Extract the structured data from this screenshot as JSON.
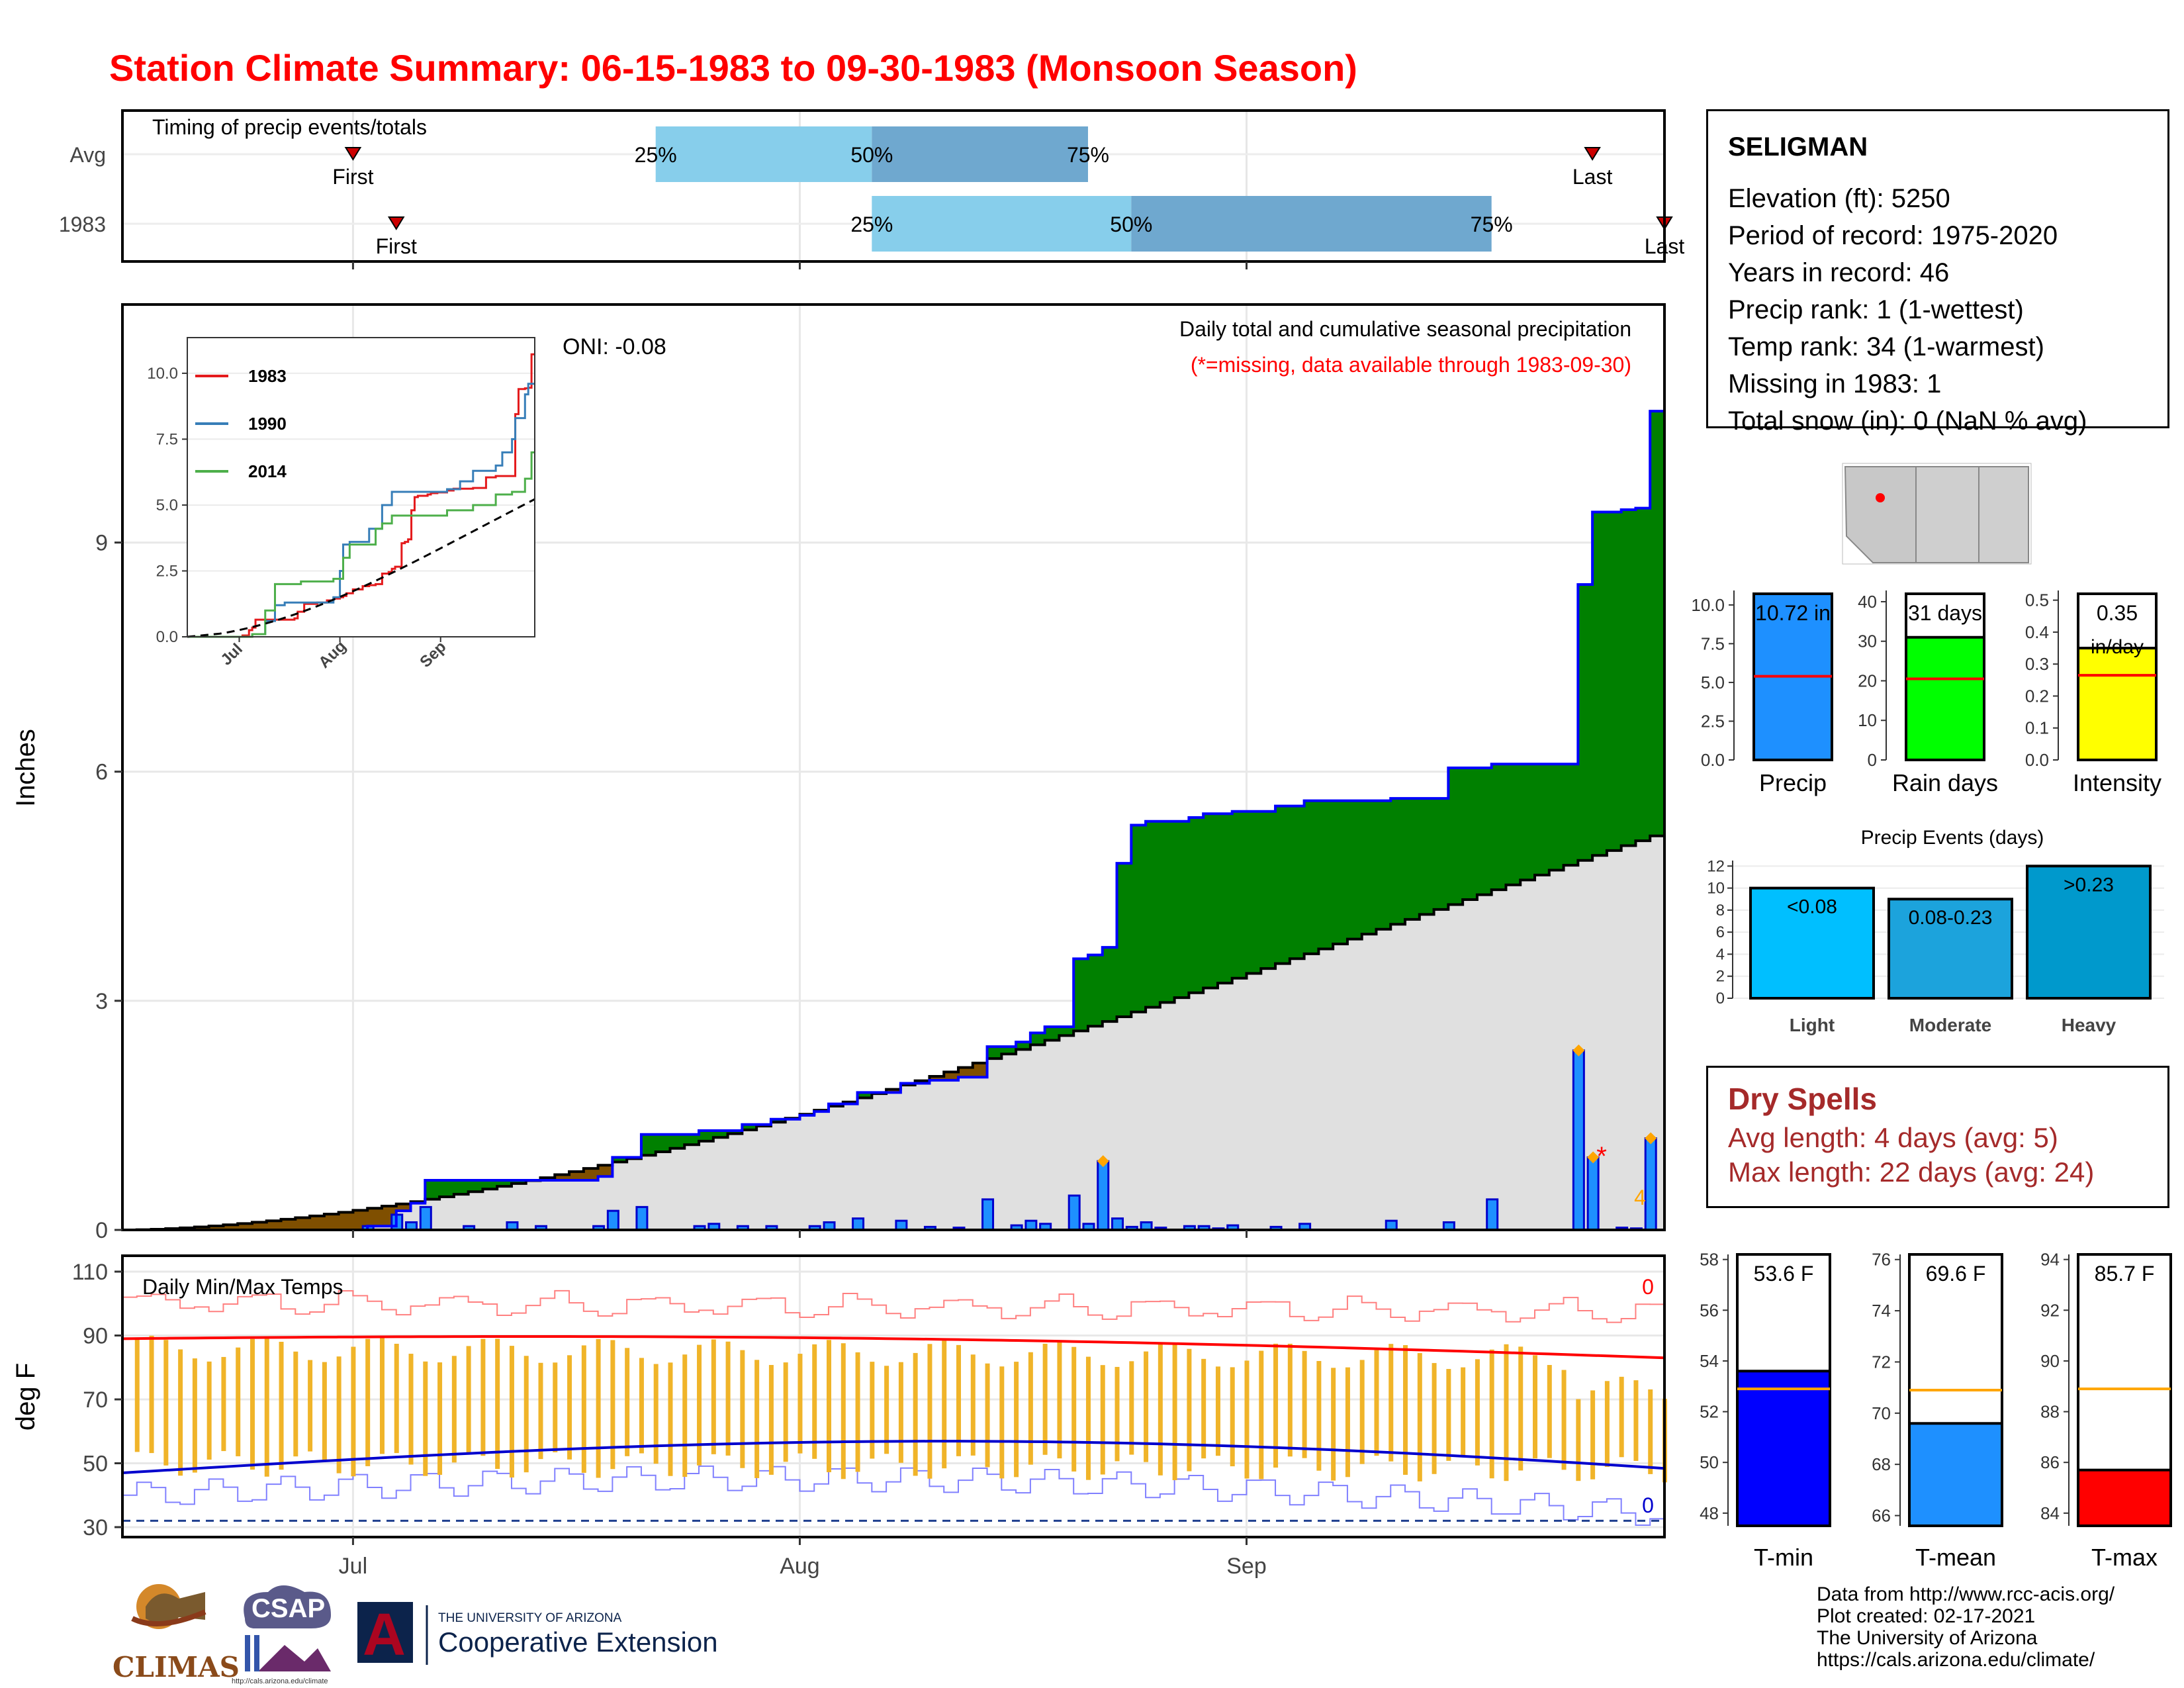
{
  "title": "Station Climate Summary: 06-15-1983 to 09-30-1983 (Monsoon Season)",
  "timing": {
    "label": "Timing of precip events/totals",
    "rows": [
      {
        "label": "Avg",
        "first_date": "1983-07-01",
        "p25": "1983-07-22",
        "p50": "1983-08-06",
        "p75": "1983-08-21",
        "last_date": "1983-09-25",
        "first_label": "First",
        "last_label": "Last"
      },
      {
        "label": "1983",
        "first_date": "1983-07-04",
        "p25": "1983-08-06",
        "p50": "1983-08-24",
        "p75": "1983-09-18",
        "last_date": "1983-09-30",
        "first_label": "First",
        "last_label": "Last"
      }
    ],
    "pct_labels": [
      "25%",
      "50%",
      "75%"
    ],
    "marker_color": "#cc0000"
  },
  "precip": {
    "ylabel": "Inches",
    "title": "Daily total and cumulative seasonal precipitation",
    "missing_note": "(*=missing, data available through 1983-09-30)",
    "oni": "ONI: -0.08",
    "extreme_count": "4",
    "missing_marker": "*",
    "colors": {
      "above": "#008000",
      "below": "#7f4f00",
      "avg_fill": "#e0e0e0",
      "bar": "#1e90ff",
      "bar_edge": "#0000cd",
      "cum_line": "#0000ff",
      "avg_line": "#000000",
      "diamond": "#ffa500"
    }
  },
  "inset": {
    "series": [
      {
        "name": "1983",
        "color": "#e41a1c"
      },
      {
        "name": "1990",
        "color": "#377eb8"
      },
      {
        "name": "2014",
        "color": "#4daf4a"
      }
    ],
    "yticks": [
      "0.0",
      "2.5",
      "5.0",
      "7.5",
      "10.0"
    ],
    "xticks": [
      "Jul",
      "Aug",
      "Sep"
    ]
  },
  "temps": {
    "label": "Daily Min/Max Temps",
    "ylabel": "deg F",
    "yticks": [
      "30",
      "50",
      "70",
      "90",
      "110"
    ],
    "xticks": [
      "Jul",
      "Aug",
      "Sep"
    ],
    "count_max": "0",
    "count_min": "0",
    "colors": {
      "bar": "#f0b429",
      "avg_max": "#ff0000",
      "avg_min": "#0000cd",
      "rec_max": "#ff8080",
      "rec_min": "#8080ff",
      "freeze": "#1f3f8f"
    }
  },
  "station": {
    "name": "SELIGMAN",
    "lines": [
      "Elevation (ft): 5250",
      "Period of record: 1975-2020",
      "Years in record: 46",
      "Precip rank: 1 (1-wettest)",
      "Temp rank: 34 (1-warmest)",
      "Missing in 1983: 1",
      "Total snow (in): 0 (NaN % avg)"
    ]
  },
  "summary_bars": [
    {
      "label": "Precip",
      "value_text": "10.72 in",
      "value": 10.72,
      "avg": 5.4,
      "ymax": 10.72,
      "yticks": [
        "0.0",
        "2.5",
        "5.0",
        "7.5",
        "10.0"
      ],
      "color": "#1e90ff"
    },
    {
      "label": "Rain days",
      "value_text": "31 days",
      "value": 31,
      "avg": 20.5,
      "ymax": 42,
      "yticks": [
        "0",
        "10",
        "20",
        "30",
        "40"
      ],
      "color": "#00ff00"
    },
    {
      "label": "Intensity",
      "value_text": "0.35",
      "value_text2": "in/day",
      "value": 0.35,
      "avg": 0.265,
      "ymax": 0.52,
      "yticks": [
        "0.0",
        "0.1",
        "0.2",
        "0.3",
        "0.4",
        "0.5"
      ],
      "color": "#ffff00"
    }
  ],
  "events": {
    "title": "Precip Events (days)",
    "yticks": [
      "0",
      "2",
      "4",
      "6",
      "8",
      "10",
      "12"
    ],
    "bars": [
      {
        "label": "Light",
        "range": "<0.08",
        "value": 10,
        "color": "#00bfff"
      },
      {
        "label": "Moderate",
        "range": "0.08-0.23",
        "value": 9,
        "color": "#1ca3dc"
      },
      {
        "label": "Heavy",
        "range": ">0.23",
        "value": 12,
        "color": "#0099cc"
      }
    ]
  },
  "dry_spells": {
    "title": "Dry Spells",
    "avg_line": "Avg length: 4 days (avg: 5)",
    "max_line": "Max length: 22 days (avg: 24)"
  },
  "temp_bars": [
    {
      "label": "T-min",
      "value_text": "53.6 F",
      "value": 53.6,
      "avg": 52.9,
      "ymin": 47.5,
      "ymax": 58.2,
      "yticks": [
        "48",
        "50",
        "52",
        "54",
        "56",
        "58"
      ],
      "color": "#0000ff"
    },
    {
      "label": "T-mean",
      "value_text": "69.6 F",
      "value": 69.6,
      "avg": 70.9,
      "ymin": 65.6,
      "ymax": 76.2,
      "yticks": [
        "66",
        "68",
        "70",
        "72",
        "74",
        "76"
      ],
      "color": "#1e90ff"
    },
    {
      "label": "T-max",
      "value_text": "85.7 F",
      "value": 85.7,
      "avg": 88.9,
      "ymin": 83.5,
      "ymax": 94.2,
      "yticks": [
        "84",
        "86",
        "88",
        "90",
        "92",
        "94"
      ],
      "color": "#ff0000"
    }
  ],
  "credits": [
    "Data from http://www.rcc-acis.org/",
    "Plot created: 02-17-2021",
    "The University of Arizona",
    "https://cals.arizona.edu/climate/"
  ],
  "logos": {
    "climas": "CLIMAS",
    "csap": "CSAP",
    "csap_url": "http://cals.arizona.edu/climate",
    "ua_small": "THE UNIVERSITY OF ARIZONA",
    "ua_big": "Cooperative Extension",
    "ua_letter": "A"
  }
}
